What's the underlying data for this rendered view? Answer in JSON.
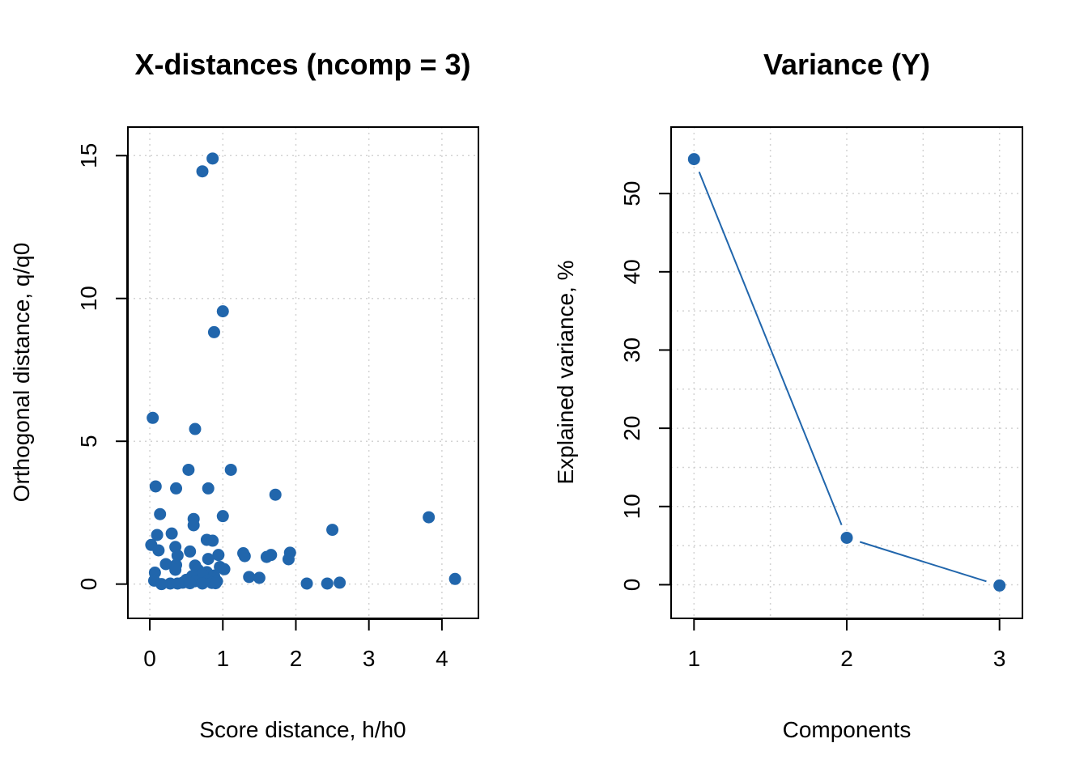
{
  "colors": {
    "series": "#2166ac",
    "grid": "#d3d3d3",
    "axis": "#000000"
  },
  "chart_data": [
    {
      "type": "scatter",
      "title": "X-distances (ncomp = 3)",
      "xlabel": "Score distance, h/h0",
      "ylabel": "Orthogonal distance, q/q0",
      "xlim": [
        -0.3,
        4.5
      ],
      "ylim": [
        -1.2,
        16.0
      ],
      "xticks": [
        0,
        1,
        2,
        3,
        4
      ],
      "yticks": [
        0,
        5,
        10,
        15
      ],
      "grid": true,
      "series": [
        {
          "points": [
            [
              0.86,
              14.9
            ],
            [
              0.72,
              14.45
            ],
            [
              1.0,
              9.55
            ],
            [
              0.88,
              8.82
            ],
            [
              0.04,
              5.82
            ],
            [
              0.62,
              5.43
            ],
            [
              0.53,
              4.0
            ],
            [
              1.11,
              4.0
            ],
            [
              0.08,
              3.42
            ],
            [
              0.36,
              3.35
            ],
            [
              0.8,
              3.35
            ],
            [
              1.72,
              3.13
            ],
            [
              3.82,
              2.34
            ],
            [
              0.14,
              2.45
            ],
            [
              0.6,
              2.28
            ],
            [
              1.0,
              2.38
            ],
            [
              0.6,
              2.06
            ],
            [
              2.5,
              1.9
            ],
            [
              0.3,
              1.77
            ],
            [
              0.1,
              1.72
            ],
            [
              0.78,
              1.55
            ],
            [
              0.86,
              1.52
            ],
            [
              0.02,
              1.37
            ],
            [
              0.12,
              1.18
            ],
            [
              0.35,
              1.3
            ],
            [
              0.55,
              1.14
            ],
            [
              1.28,
              1.08
            ],
            [
              1.3,
              0.98
            ],
            [
              1.6,
              0.95
            ],
            [
              1.66,
              1.02
            ],
            [
              1.92,
              1.1
            ],
            [
              1.9,
              0.87
            ],
            [
              0.38,
              1.0
            ],
            [
              0.94,
              1.02
            ],
            [
              0.8,
              0.88
            ],
            [
              0.22,
              0.7
            ],
            [
              0.36,
              0.67
            ],
            [
              0.62,
              0.65
            ],
            [
              0.35,
              0.5
            ],
            [
              0.07,
              0.4
            ],
            [
              0.66,
              0.5
            ],
            [
              0.78,
              0.42
            ],
            [
              0.96,
              0.6
            ],
            [
              1.02,
              0.52
            ],
            [
              0.72,
              0.35
            ],
            [
              0.88,
              0.3
            ],
            [
              0.58,
              0.28
            ],
            [
              1.36,
              0.25
            ],
            [
              1.5,
              0.22
            ],
            [
              0.5,
              0.15
            ],
            [
              0.06,
              0.12
            ],
            [
              0.8,
              0.12
            ],
            [
              0.92,
              0.1
            ],
            [
              0.62,
              0.1
            ],
            [
              0.45,
              0.05
            ],
            [
              0.28,
              0.02
            ],
            [
              0.16,
              0.0
            ],
            [
              0.38,
              0.02
            ],
            [
              0.55,
              0.03
            ],
            [
              0.72,
              0.02
            ],
            [
              0.85,
              0.04
            ],
            [
              0.9,
              0.03
            ],
            [
              2.15,
              0.02
            ],
            [
              2.43,
              0.02
            ],
            [
              2.6,
              0.05
            ],
            [
              4.18,
              0.18
            ]
          ]
        }
      ]
    },
    {
      "type": "line",
      "title": "Variance (Y)",
      "xlabel": "Components",
      "ylabel": "Explained variance, %",
      "xlim": [
        0.85,
        3.15
      ],
      "ylim": [
        -4.3,
        58.5
      ],
      "xticks": [
        1,
        2,
        3
      ],
      "yticks": [
        0,
        10,
        20,
        30,
        40,
        50
      ],
      "grid": true,
      "series": [
        {
          "x": [
            1,
            2,
            3
          ],
          "values": [
            54.4,
            6.0,
            -0.1
          ]
        }
      ]
    }
  ]
}
